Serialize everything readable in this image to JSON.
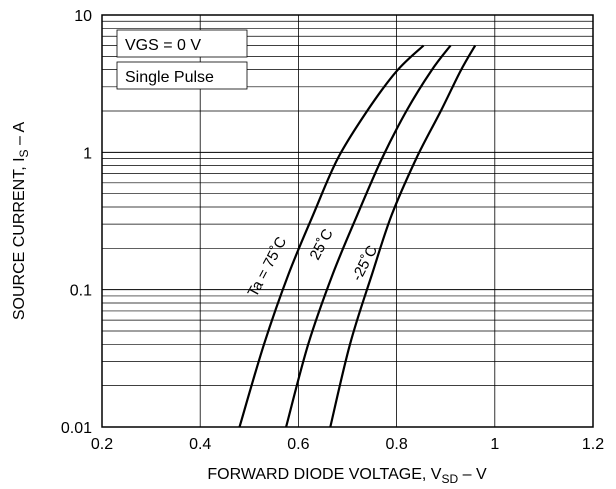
{
  "chart_data": {
    "type": "line",
    "title": "",
    "xlabel": "FORWARD DIODE VOLTAGE, V",
    "xlabel_sub": "SD",
    "xlabel_suffix": " – V",
    "ylabel": "SOURCE CURRENT, I",
    "ylabel_sub": "S",
    "ylabel_suffix": " – A",
    "xlim": [
      0.2,
      1.2
    ],
    "ylim": [
      0.01,
      10
    ],
    "yscale": "log",
    "grid": true,
    "x_ticks": [
      "0.2",
      "0.4",
      "0.6",
      "0.8",
      "1",
      "1.2"
    ],
    "y_ticks": [
      "0.01",
      "0.1",
      "1",
      "10"
    ],
    "legend": {
      "placement": "top-left",
      "entries": [
        "VGS = 0 V",
        "Single Pulse"
      ]
    },
    "series": [
      {
        "name": "Ta = 75˚C",
        "x": [
          0.48,
          0.53,
          0.58,
          0.63,
          0.68,
          0.74,
          0.8,
          0.855
        ],
        "y": [
          0.01,
          0.04,
          0.13,
          0.35,
          0.9,
          2.0,
          3.9,
          6.0
        ]
      },
      {
        "name": "25˚C",
        "x": [
          0.575,
          0.62,
          0.67,
          0.72,
          0.77,
          0.82,
          0.87,
          0.91
        ],
        "y": [
          0.01,
          0.04,
          0.13,
          0.35,
          0.9,
          2.0,
          3.9,
          6.0
        ]
      },
      {
        "name": "-25˚C",
        "x": [
          0.665,
          0.705,
          0.75,
          0.79,
          0.84,
          0.89,
          0.93,
          0.96
        ],
        "y": [
          0.01,
          0.04,
          0.13,
          0.35,
          0.9,
          2.0,
          3.9,
          6.0
        ]
      }
    ],
    "colors": {
      "line": "#000000",
      "grid": "#000000",
      "background": "#ffffff"
    }
  }
}
